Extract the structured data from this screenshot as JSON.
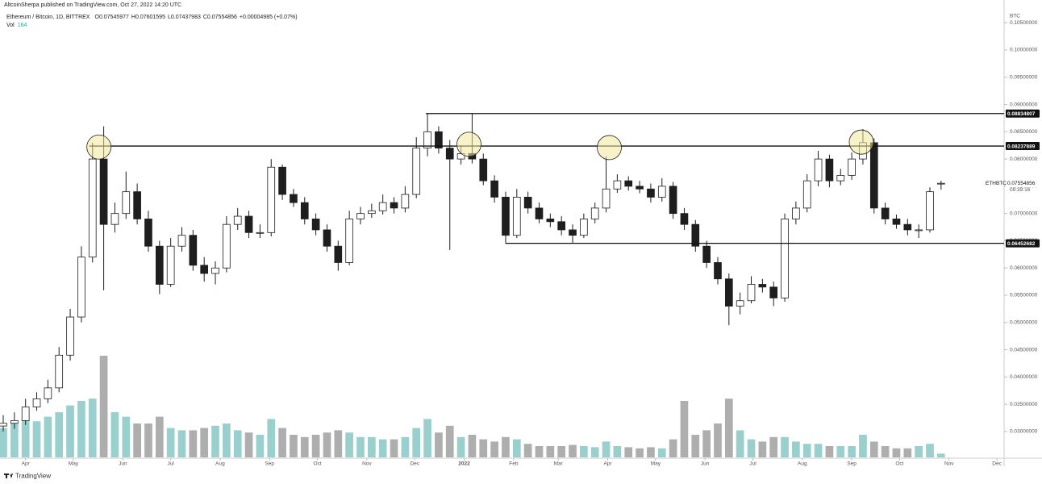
{
  "header": {
    "publisher": "AltcoinSherpa published on TradingView.com, Oct 27, 2022 14:20 UTC"
  },
  "chart_data": {
    "type": "candlestick",
    "title": "Ethereum / Bitcoin, 1D, BITTREX",
    "ohlc_prefixes": {
      "open": "O",
      "high": "H",
      "low": "L",
      "close": "C"
    },
    "change": "+0.00004985 (+0.07%)",
    "volume_label": "Vol",
    "currency": "BTC",
    "symbol": "ETHBTC",
    "countdown": "09:39:16",
    "x": [
      -14,
      -7,
      0,
      7,
      14,
      21,
      28,
      35,
      42,
      49,
      56,
      63,
      70,
      77,
      84,
      91,
      98,
      105,
      112,
      119,
      126,
      133,
      140,
      147,
      154,
      161,
      168,
      175,
      182,
      189,
      196,
      203,
      210,
      217,
      224,
      231,
      238,
      245,
      252,
      259,
      266,
      273,
      280,
      287,
      294,
      301,
      308,
      315,
      322,
      329,
      336,
      343,
      350,
      357,
      364,
      371,
      378,
      385,
      392,
      399,
      406,
      413,
      420,
      427,
      434,
      441,
      448,
      455,
      462,
      469,
      476,
      483,
      490,
      497,
      504,
      511,
      518,
      525,
      532,
      539,
      546,
      553,
      560,
      567,
      574
    ],
    "open": [
      0.031,
      0.0315,
      0.032,
      0.0345,
      0.036,
      0.038,
      0.044,
      0.051,
      0.062,
      0.08,
      0.068,
      0.07,
      0.074,
      0.069,
      0.064,
      0.057,
      0.064,
      0.066,
      0.0605,
      0.059,
      0.06,
      0.068,
      0.0695,
      0.0665,
      0.0665,
      0.0785,
      0.0735,
      0.072,
      0.069,
      0.067,
      0.064,
      0.061,
      0.069,
      0.07,
      0.0705,
      0.072,
      0.071,
      0.0735,
      0.082,
      0.085,
      0.082,
      0.08,
      0.081,
      0.08,
      0.076,
      0.073,
      0.066,
      0.073,
      0.071,
      0.069,
      0.0685,
      0.067,
      0.066,
      0.069,
      0.071,
      0.0745,
      0.076,
      0.075,
      0.0745,
      0.073,
      0.075,
      0.07,
      0.068,
      0.064,
      0.061,
      0.058,
      0.053,
      0.054,
      0.057,
      0.0565,
      0.0545,
      0.069,
      0.071,
      0.076,
      0.08,
      0.076,
      0.077,
      0.08,
      0.083,
      0.071,
      0.069,
      0.068,
      0.067,
      0.067,
      0.07545977
    ],
    "high": [
      0.033,
      0.0335,
      0.036,
      0.0372,
      0.0395,
      0.0455,
      0.0525,
      0.064,
      0.083,
      0.086,
      0.072,
      0.0777,
      0.0755,
      0.0705,
      0.065,
      0.0655,
      0.0675,
      0.067,
      0.062,
      0.0612,
      0.0695,
      0.071,
      0.0705,
      0.068,
      0.08,
      0.079,
      0.0745,
      0.073,
      0.07,
      0.068,
      0.065,
      0.0705,
      0.0712,
      0.0718,
      0.0735,
      0.073,
      0.075,
      0.084,
      0.0883,
      0.086,
      0.0835,
      0.0825,
      0.0883,
      0.081,
      0.077,
      0.074,
      0.0745,
      0.074,
      0.072,
      0.07,
      0.0695,
      0.068,
      0.07,
      0.072,
      0.0805,
      0.0772,
      0.0768,
      0.076,
      0.0755,
      0.0765,
      0.0758,
      0.071,
      0.0688,
      0.065,
      0.062,
      0.059,
      0.0555,
      0.0585,
      0.058,
      0.0575,
      0.07,
      0.0722,
      0.0772,
      0.0815,
      0.0808,
      0.0782,
      0.0812,
      0.0855,
      0.0838,
      0.072,
      0.0698,
      0.069,
      0.068,
      0.0748,
      0.07601595
    ],
    "low": [
      0.03,
      0.0305,
      0.0312,
      0.0338,
      0.0352,
      0.0372,
      0.043,
      0.05,
      0.061,
      0.0559,
      0.0665,
      0.069,
      0.068,
      0.063,
      0.0552,
      0.0565,
      0.063,
      0.0595,
      0.0575,
      0.057,
      0.0592,
      0.067,
      0.0655,
      0.0655,
      0.0658,
      0.0725,
      0.0712,
      0.068,
      0.066,
      0.063,
      0.0595,
      0.0605,
      0.068,
      0.0692,
      0.0698,
      0.07,
      0.0702,
      0.0728,
      0.0805,
      0.081,
      0.0633,
      0.079,
      0.0792,
      0.0752,
      0.072,
      0.0645,
      0.0655,
      0.07,
      0.0682,
      0.0675,
      0.066,
      0.0645,
      0.0655,
      0.0682,
      0.0702,
      0.0738,
      0.0742,
      0.0737,
      0.072,
      0.0722,
      0.069,
      0.067,
      0.063,
      0.06,
      0.057,
      0.0495,
      0.0515,
      0.0535,
      0.0555,
      0.053,
      0.0538,
      0.068,
      0.0702,
      0.075,
      0.0748,
      0.0752,
      0.0762,
      0.079,
      0.07,
      0.068,
      0.0672,
      0.066,
      0.0655,
      0.0665,
      0.07437983
    ],
    "close": [
      0.0315,
      0.032,
      0.0345,
      0.036,
      0.038,
      0.044,
      0.051,
      0.062,
      0.08,
      0.068,
      0.07,
      0.074,
      0.069,
      0.064,
      0.057,
      0.064,
      0.066,
      0.0605,
      0.059,
      0.06,
      0.068,
      0.0695,
      0.0665,
      0.0665,
      0.0785,
      0.0735,
      0.072,
      0.069,
      0.067,
      0.064,
      0.061,
      0.069,
      0.07,
      0.0705,
      0.072,
      0.071,
      0.0735,
      0.082,
      0.085,
      0.082,
      0.08,
      0.081,
      0.08,
      0.076,
      0.073,
      0.066,
      0.073,
      0.071,
      0.069,
      0.0685,
      0.067,
      0.066,
      0.069,
      0.071,
      0.0745,
      0.076,
      0.075,
      0.0745,
      0.073,
      0.075,
      0.07,
      0.068,
      0.064,
      0.061,
      0.058,
      0.053,
      0.054,
      0.057,
      0.0565,
      0.0545,
      0.069,
      0.071,
      0.076,
      0.08,
      0.076,
      0.077,
      0.08,
      0.083,
      0.071,
      0.069,
      0.068,
      0.067,
      0.067,
      0.074,
      0.07554856
    ],
    "volume": [
      1300,
      1500,
      1700,
      1600,
      1800,
      2000,
      2300,
      2500,
      2600,
      4500,
      2000,
      1800,
      1500,
      1500,
      1800,
      1300,
      1200,
      1200,
      1300,
      1400,
      1500,
      1200,
      1100,
      1000,
      1700,
      1300,
      1000,
      900,
      1000,
      1100,
      1200,
      1100,
      900,
      900,
      800,
      800,
      900,
      1300,
      1700,
      1100,
      1400,
      900,
      1000,
      800,
      700,
      900,
      800,
      600,
      500,
      500,
      500,
      550,
      500,
      450,
      700,
      500,
      450,
      400,
      450,
      400,
      800,
      2500,
      1000,
      1200,
      1500,
      2600,
      1200,
      800,
      700,
      900,
      900,
      700,
      600,
      600,
      500,
      500,
      500,
      1000,
      700,
      500,
      400,
      400,
      500,
      600,
      164
    ],
    "up_color": "#ffffff",
    "down_color": "#1e1e1e",
    "volume_up_color": "#7fc3c0",
    "volume_down_color": "#9a9a9a",
    "xlim": [
      -14,
      612
    ],
    "xticks": [
      {
        "value": 0,
        "label": "Apr"
      },
      {
        "value": 30,
        "label": "May"
      },
      {
        "value": 61,
        "label": "Jun"
      },
      {
        "value": 91,
        "label": "Jul"
      },
      {
        "value": 122,
        "label": "Aug"
      },
      {
        "value": 153,
        "label": "Sep"
      },
      {
        "value": 183,
        "label": "Oct"
      },
      {
        "value": 214,
        "label": "Nov"
      },
      {
        "value": 244,
        "label": "Dec"
      },
      {
        "value": 275,
        "label": "2022"
      },
      {
        "value": 306,
        "label": "Feb"
      },
      {
        "value": 334,
        "label": "Mar"
      },
      {
        "value": 365,
        "label": "Apr"
      },
      {
        "value": 395,
        "label": "May"
      },
      {
        "value": 426,
        "label": "Jun"
      },
      {
        "value": 456,
        "label": "Jul"
      },
      {
        "value": 487,
        "label": "Aug"
      },
      {
        "value": 518,
        "label": "Sep"
      },
      {
        "value": 548,
        "label": "Oct"
      },
      {
        "value": 579,
        "label": "Nov"
      },
      {
        "value": 609,
        "label": "Dec"
      }
    ],
    "ylim": [
      0.0248,
      0.1077
    ],
    "yticks": [
      {
        "value": 0.03,
        "label": "0.03000000"
      },
      {
        "value": 0.035,
        "label": "0.03500000"
      },
      {
        "value": 0.04,
        "label": "0.04000000"
      },
      {
        "value": 0.045,
        "label": "0.04500000"
      },
      {
        "value": 0.05,
        "label": "0.05000000"
      },
      {
        "value": 0.055,
        "label": "0.05500000"
      },
      {
        "value": 0.06,
        "label": "0.06000000"
      },
      {
        "value": 0.065,
        "label": "0.06500000"
      },
      {
        "value": 0.07,
        "label": "0.07000000"
      },
      {
        "value": 0.075,
        "label": "0.07500000"
      },
      {
        "value": 0.08,
        "label": "0.08000000"
      },
      {
        "value": 0.085,
        "label": "0.08500000"
      },
      {
        "value": 0.09,
        "label": "0.09000000"
      },
      {
        "value": 0.095,
        "label": "0.09500000"
      },
      {
        "value": 0.1,
        "label": "0.10000000"
      },
      {
        "value": 0.105,
        "label": "0.10500000"
      }
    ],
    "vlim": [
      0,
      5000
    ],
    "levels": [
      {
        "value": 0.08834807,
        "from": 251
      },
      {
        "value": 0.08237889,
        "from": 40
      },
      {
        "value": 0.06452682,
        "from": 301
      }
    ],
    "highlights": [
      {
        "x": 46,
        "y": 0.0822
      },
      {
        "x": 278,
        "y": 0.0827
      },
      {
        "x": 366,
        "y": 0.0821
      },
      {
        "x": 524,
        "y": 0.0831
      }
    ]
  },
  "footer": {
    "brand": "TradingView"
  }
}
